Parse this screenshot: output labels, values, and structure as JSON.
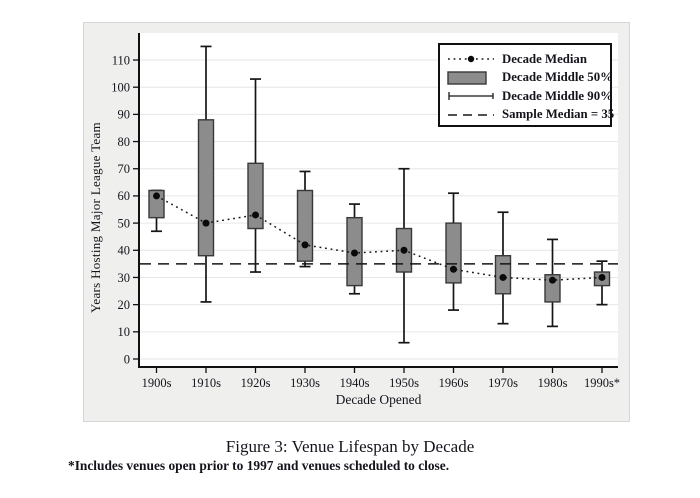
{
  "page": {
    "title": "Figure 3: Venue Lifespan by Decade",
    "footnote": "*Includes venues open prior to 1997 and venues scheduled to close."
  },
  "chart_data": {
    "type": "box",
    "title": "Figure 3: Venue Lifespan by Decade",
    "xlabel": "Decade Opened",
    "ylabel": "Years Hosting Major League Team",
    "ylim": [
      0,
      115
    ],
    "yticks": [
      0,
      10,
      20,
      30,
      40,
      50,
      60,
      70,
      80,
      90,
      100,
      110
    ],
    "grid": "horizontal",
    "legend_position": "top-right",
    "sample_median": 35,
    "categories": [
      "1900s",
      "1910s",
      "1920s",
      "1930s",
      "1940s",
      "1950s",
      "1960s",
      "1970s",
      "1980s",
      "1990s*"
    ],
    "series": {
      "whisker_low_p5": [
        47,
        21,
        32,
        34,
        24,
        6,
        18,
        13,
        12,
        20
      ],
      "box_low_q1": [
        52,
        38,
        48,
        36,
        27,
        32,
        28,
        24,
        21,
        27
      ],
      "median": [
        60,
        50,
        53,
        42,
        39,
        40,
        33,
        30,
        29,
        30
      ],
      "box_high_q3": [
        62,
        88,
        72,
        62,
        52,
        48,
        50,
        38,
        31,
        32
      ],
      "whisker_high_p95": [
        62,
        115,
        103,
        69,
        57,
        70,
        61,
        54,
        44,
        36
      ]
    },
    "legend": [
      {
        "marker": "dotted-line-with-dot",
        "label": "Decade Median"
      },
      {
        "marker": "gray-box",
        "label": "Decade Middle 50%"
      },
      {
        "marker": "whisker-range",
        "label": "Decade Middle 90%"
      },
      {
        "marker": "dashed-line",
        "label": "Sample Median = 35"
      }
    ],
    "colors": {
      "box_fill": "#8c8c8c",
      "box_border": "#383838",
      "line": "#161616",
      "grid": "#e6e6e6",
      "figure_bg": "#efefee",
      "plot_bg": "#ffffff",
      "text": "#14141c"
    }
  }
}
